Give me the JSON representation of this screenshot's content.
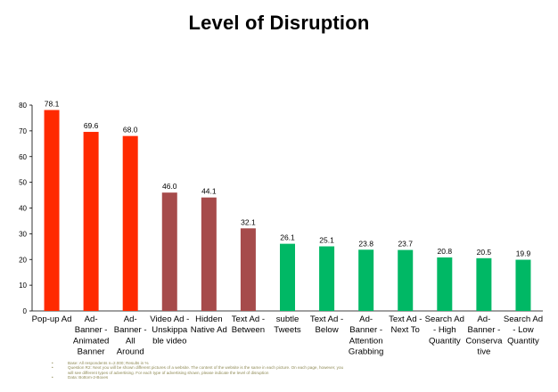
{
  "chart_data": {
    "type": "bar",
    "title": "Level of Disruption",
    "xlabel": "",
    "ylabel": "",
    "ylim": [
      0,
      80
    ],
    "yticks": [
      0,
      10,
      20,
      30,
      40,
      50,
      60,
      70,
      80
    ],
    "grid": false,
    "legend": "none",
    "categories": [
      "Pop-up Ad",
      "Ad-Banner - Animated Banner",
      "Ad-Banner - All Around",
      "Video Ad - Unskippable video",
      "Hidden Native Ad",
      "Text Ad - Between",
      "subtle Tweets",
      "Text Ad - Below",
      "Ad-Banner - Attention Grabbing",
      "Text Ad - Next To",
      "Search Ad - High Quantity",
      "Ad-Banner - Conservative",
      "Search Ad - Low Quantity"
    ],
    "category_lines": [
      [
        "Pop-up Ad"
      ],
      [
        "Ad-",
        "Banner -",
        "Animated",
        "Banner"
      ],
      [
        "Ad-",
        "Banner -",
        "All",
        "Around"
      ],
      [
        "Video Ad -",
        "Unskippa",
        "ble video"
      ],
      [
        "Hidden",
        "Native Ad"
      ],
      [
        "Text Ad -",
        "Between"
      ],
      [
        "subtle",
        "Tweets"
      ],
      [
        "Text Ad -",
        "Below"
      ],
      [
        "Ad-",
        "Banner -",
        "Attention",
        "Grabbing"
      ],
      [
        "Text Ad -",
        "Next To"
      ],
      [
        "Search Ad",
        "- High",
        "Quantity"
      ],
      [
        "Ad-",
        "Banner -",
        "Conserva",
        "tive"
      ],
      [
        "Search Ad",
        "- Low",
        "Quantity"
      ]
    ],
    "values": [
      78.1,
      69.6,
      68.0,
      46.0,
      44.1,
      32.1,
      26.1,
      25.1,
      23.8,
      23.7,
      20.8,
      20.5,
      19.9
    ],
    "value_labels": [
      "78.1",
      "69.6",
      "68.0",
      "46.0",
      "44.1",
      "32.1",
      "26.1",
      "25.1",
      "23.8",
      "23.7",
      "20.8",
      "20.5",
      "19.9"
    ],
    "bar_colors": [
      "#ff2a00",
      "#ff2a00",
      "#ff2a00",
      "#a64b4b",
      "#a64b4b",
      "#a64b4b",
      "#00b865",
      "#00b865",
      "#00b865",
      "#00b865",
      "#00b865",
      "#00b865",
      "#00b865"
    ]
  },
  "footnotes": [
    "Base: All respondents n=2.000; Results in %",
    "Question R2: Next you will be shown different pictures of a website. The content of the website is the same in each picture. On each page, however, you",
    "will see different types of advertising. For each type of advertising shown, please indicate the level of disruption",
    "Data: Bottom-2-Boxes"
  ],
  "footnote_bullets": [
    "•",
    "•",
    "",
    "•"
  ]
}
